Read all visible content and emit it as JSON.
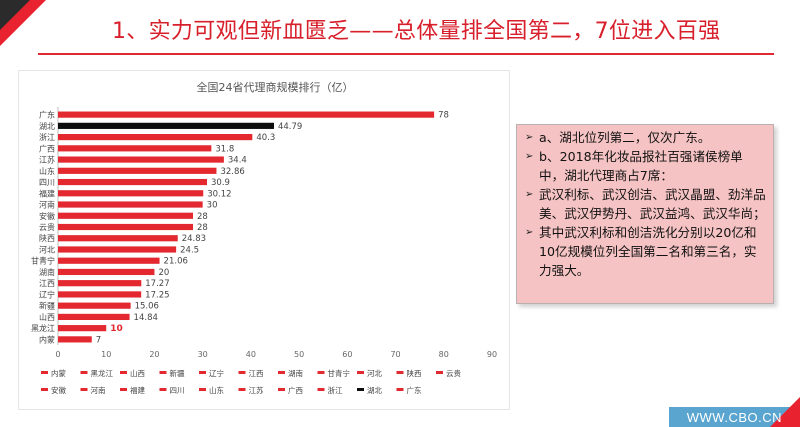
{
  "slide": {
    "title": "1、实力可观但新血匮乏——总体量排全国第二，7位进入百强",
    "site": "WWW.CBO.CN"
  },
  "colors": {
    "accent": "#e8232f",
    "bar": "#e3282f",
    "highlight_bar": "#0d0d0d",
    "highlight_label": "#e3282f",
    "callout_bg": "#f5c3c3"
  },
  "callout": {
    "items": [
      {
        "marker": "➢",
        "text": "a、湖北位列第二，仅次广东。"
      },
      {
        "marker": "➢",
        "text": "b、2018年化妆品报社百强诸侯榜单中，湖北代理商占7席："
      },
      {
        "marker": "➢",
        "text": "武汉利标、武汉创洁、武汉晶盟、劲洋品美、武汉伊势丹、武汉益鸿、武汉华尚；"
      },
      {
        "marker": "➢",
        "text": "其中武汉利标和创洁洗化分别以20亿和10亿规模位列全国第二名和第三名，实力强大。"
      }
    ]
  },
  "chart_data": {
    "type": "bar",
    "orientation": "horizontal",
    "title": "全国24省代理商规模排行（亿）",
    "xlabel": "",
    "ylabel": "",
    "xlim": [
      0,
      90
    ],
    "xticks": [
      0,
      10,
      20,
      30,
      40,
      50,
      60,
      70,
      80,
      90
    ],
    "grid": false,
    "legend_position": "bottom",
    "categories": [
      "广东",
      "湖北",
      "浙江",
      "广西",
      "江苏",
      "山东",
      "四川",
      "福建",
      "河南",
      "安徽",
      "云贵",
      "陕西",
      "河北",
      "甘青宁",
      "湖南",
      "江西",
      "辽宁",
      "新疆",
      "山西",
      "黑龙江",
      "内蒙"
    ],
    "values": [
      78,
      44.79,
      40.3,
      31.8,
      34.4,
      32.86,
      30.9,
      30.12,
      30,
      28,
      28,
      24.83,
      24.5,
      21.06,
      20,
      17.27,
      17.25,
      15.06,
      14.84,
      10,
      7
    ],
    "value_labels": [
      "78",
      "44.79",
      "40.3",
      "31.8",
      "34.4",
      "32.86",
      "30.9",
      "30.12",
      "30",
      "28",
      "28",
      "24.83",
      "24.5",
      "21.06",
      "20",
      "17.27",
      "17.25",
      "15.06",
      "14.84",
      "10",
      "7"
    ],
    "highlight_bar": "湖北",
    "highlight_label": "黑龙江",
    "legend_row1": [
      "内蒙",
      "黑龙江",
      "山西",
      "新疆",
      "辽宁",
      "江西",
      "湖南",
      "甘青宁",
      "河北",
      "陕西",
      "云贵"
    ],
    "legend_row2": [
      "安徽",
      "河南",
      "福建",
      "四川",
      "山东",
      "江苏",
      "广西",
      "浙江",
      "湖北",
      "广东"
    ]
  }
}
